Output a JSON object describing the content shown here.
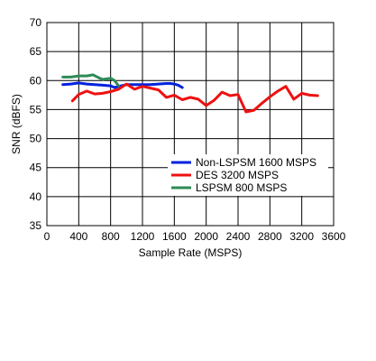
{
  "chart_data": {
    "type": "line",
    "title": "",
    "xlabel": "Sample Rate (MSPS)",
    "ylabel": "SNR (dBFS)",
    "xlim": [
      0,
      3600
    ],
    "ylim": [
      35,
      70
    ],
    "xticks": [
      0,
      400,
      800,
      1200,
      1600,
      2000,
      2400,
      2800,
      3200,
      3600
    ],
    "yticks": [
      35,
      40,
      45,
      50,
      55,
      60,
      65,
      70
    ],
    "grid": true,
    "legend_position": "lower-right",
    "series": [
      {
        "name": "Non-LSPSM 1600 MSPS",
        "color": "#0022dd",
        "points": [
          [
            200,
            59.3
          ],
          [
            300,
            59.4
          ],
          [
            400,
            59.6
          ],
          [
            500,
            59.4
          ],
          [
            600,
            59.3
          ],
          [
            700,
            59.2
          ],
          [
            800,
            59.1
          ],
          [
            850,
            58.8
          ],
          [
            900,
            59.0
          ],
          [
            1000,
            59.3
          ],
          [
            1100,
            59.3
          ],
          [
            1200,
            59.3
          ],
          [
            1300,
            59.3
          ],
          [
            1400,
            59.4
          ],
          [
            1500,
            59.5
          ],
          [
            1550,
            59.5
          ],
          [
            1600,
            59.4
          ],
          [
            1650,
            59.2
          ],
          [
            1700,
            58.8
          ]
        ]
      },
      {
        "name": "DES 3200 MSPS",
        "color": "#ee1111",
        "points": [
          [
            320,
            56.5
          ],
          [
            400,
            57.6
          ],
          [
            500,
            58.2
          ],
          [
            600,
            57.7
          ],
          [
            700,
            57.8
          ],
          [
            800,
            58.1
          ],
          [
            900,
            58.5
          ],
          [
            1000,
            59.4
          ],
          [
            1100,
            58.5
          ],
          [
            1200,
            59.0
          ],
          [
            1300,
            58.7
          ],
          [
            1400,
            58.4
          ],
          [
            1500,
            57.1
          ],
          [
            1600,
            57.5
          ],
          [
            1700,
            56.7
          ],
          [
            1800,
            57.1
          ],
          [
            1900,
            56.8
          ],
          [
            2000,
            55.7
          ],
          [
            2100,
            56.6
          ],
          [
            2200,
            58.0
          ],
          [
            2300,
            57.4
          ],
          [
            2400,
            57.6
          ],
          [
            2500,
            54.6
          ],
          [
            2600,
            54.9
          ],
          [
            2700,
            56.1
          ],
          [
            2800,
            57.2
          ],
          [
            2900,
            58.2
          ],
          [
            3000,
            59.0
          ],
          [
            3100,
            56.8
          ],
          [
            3200,
            57.8
          ],
          [
            3300,
            57.5
          ],
          [
            3400,
            57.4
          ]
        ]
      },
      {
        "name": "LSPSM 800 MSPS",
        "color": "#2e8b57",
        "points": [
          [
            200,
            60.6
          ],
          [
            300,
            60.6
          ],
          [
            400,
            60.8
          ],
          [
            500,
            60.8
          ],
          [
            580,
            61.0
          ],
          [
            650,
            60.5
          ],
          [
            700,
            60.2
          ],
          [
            800,
            60.4
          ],
          [
            850,
            60.0
          ],
          [
            900,
            59.1
          ]
        ]
      }
    ]
  }
}
